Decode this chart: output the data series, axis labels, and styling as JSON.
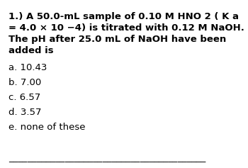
{
  "title_number": "1.)",
  "question_line1": "A 50.0-mL sample of 0.10 M HNO 2 ( K a",
  "question_line2": "= 4.0 × 10 −4) is titrated with 0.12 M NaOH.",
  "question_line3": "The pH after 25.0 mL of NaOH have been",
  "question_line4": "added is",
  "choices": [
    "a. 10.43",
    "b. 7.00",
    "c. 6.57",
    "d. 3.57",
    "e. none of these"
  ],
  "background_color": "#ffffff",
  "text_color": "#000000",
  "font_size_question": 9.5,
  "font_size_choices": 9.5,
  "separator": "__________________________________________"
}
